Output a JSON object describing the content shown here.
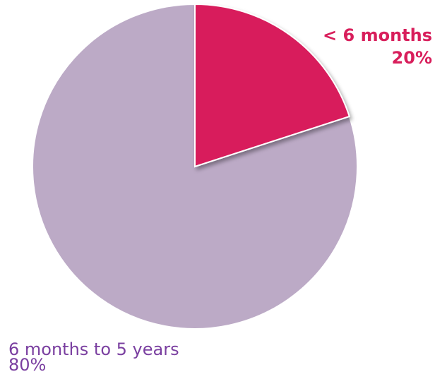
{
  "chart_data": {
    "type": "pie",
    "categories": [
      "< 6 months",
      "6 months to 5 years"
    ],
    "values": [
      20,
      80
    ],
    "value_labels": [
      "20%",
      "80%"
    ],
    "colors": [
      "#d81e5b",
      "#bcaac6"
    ],
    "label_colors": [
      "#d81e5b",
      "#7a3fa0"
    ]
  }
}
